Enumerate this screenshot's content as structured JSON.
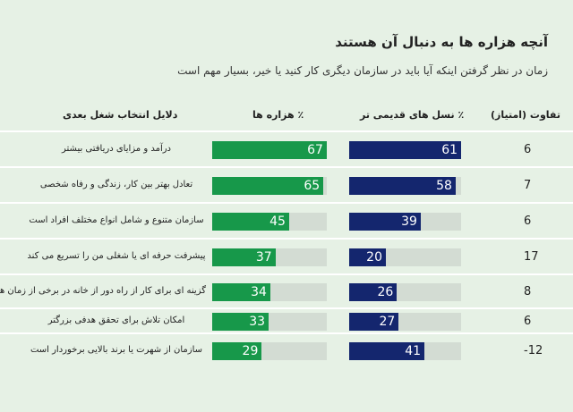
{
  "chart_data": {
    "type": "bar",
    "title": "آنچه هزاره ها به دنبال آن هستند",
    "subtitle": "زمان در نظر گرفتن اینکه آیا باید در سازمان دیگری کار کنید یا خیر، بسیار مهم است",
    "headers": {
      "reason": "دلایل انتخاب شغل بعدی",
      "millennials": "٪ هزاره ها",
      "older": "٪ نسل های قدیمی تر",
      "diff": "تفاوت (امتیاز)"
    },
    "categories": [
      "درآمد و مزایای دریافتی بیشتر",
      "تعادل بهتر بین کار، زندگی و رفاه شخصی",
      "سازمان متنوع و شامل انواع مختلف افراد است",
      "پیشرفت حرفه ای یا شغلی من را تسریع می کند",
      "گزینه ای برای کار از راه دور از خانه در برخی از زمان ها دارد",
      "امکان تلاش برای تحقق هدفی بزرگتر",
      "سازمان از شهرت یا برند بالایی برخوردار است"
    ],
    "series": [
      {
        "name": "٪ هزاره ها",
        "values": [
          67,
          65,
          45,
          37,
          34,
          33,
          29
        ],
        "color": "#17984a"
      },
      {
        "name": "٪ نسل های قدیمی تر",
        "values": [
          61,
          58,
          39,
          20,
          26,
          27,
          41
        ],
        "color": "#14266e"
      }
    ],
    "diff": [
      "6",
      "7",
      "6",
      "17",
      "8",
      "6",
      "-12"
    ]
  }
}
